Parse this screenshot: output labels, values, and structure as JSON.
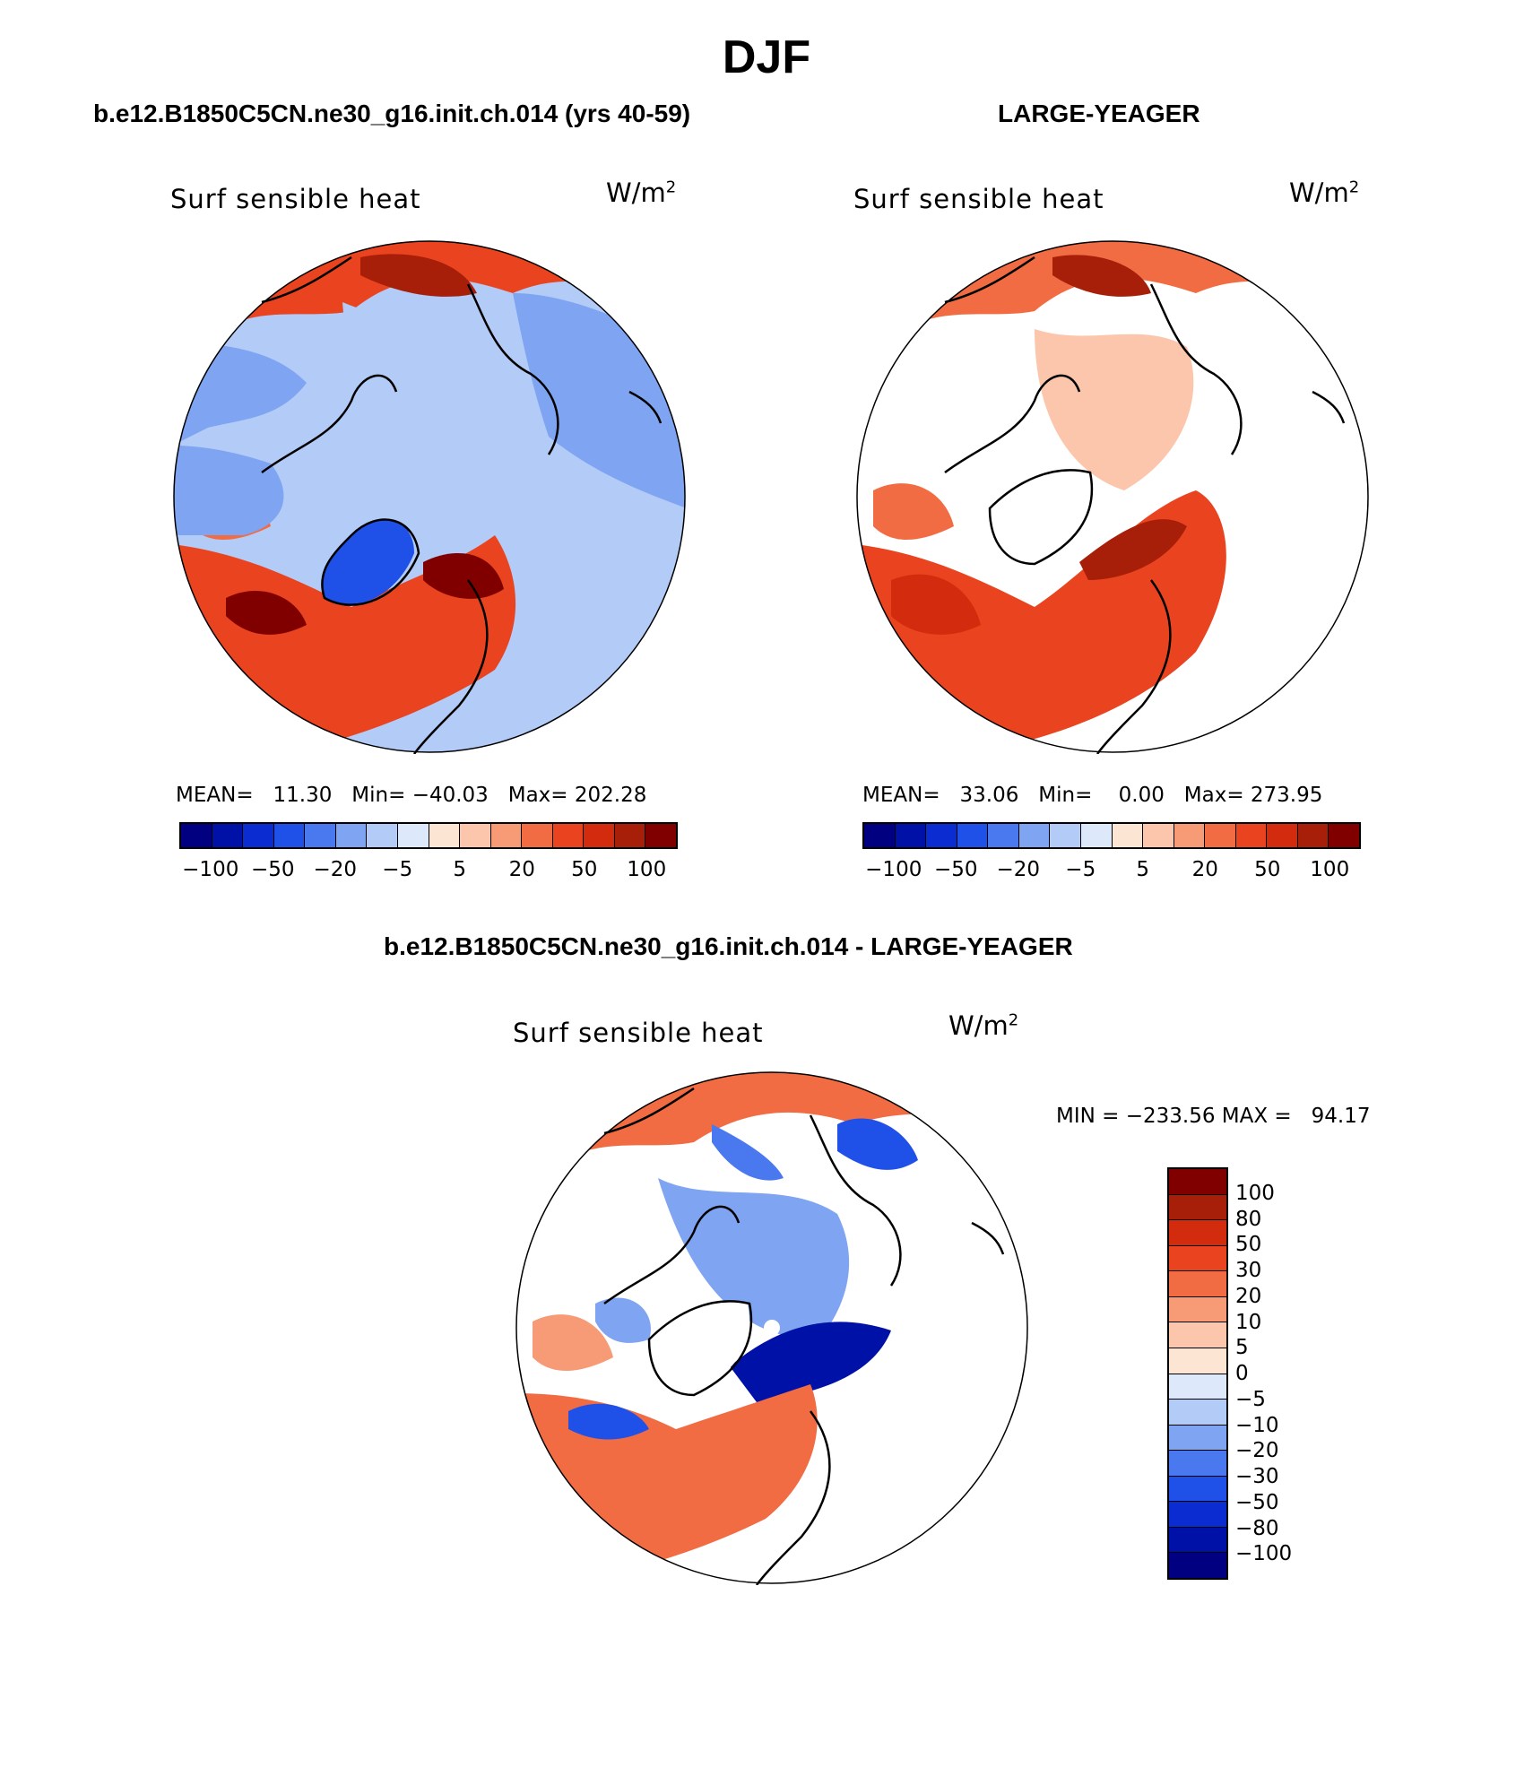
{
  "title": "DJF",
  "panels": {
    "left": {
      "case_title": "b.e12.B1850C5CN.ne30_g16.init.ch.014 (yrs 40-59)",
      "variable": "Surf sensible heat",
      "units_base": "W/m",
      "units_sup": "2",
      "stats": "MEAN=   11.30   Min= −40.03   Max= 202.28"
    },
    "right": {
      "case_title": "LARGE-YEAGER",
      "variable": "Surf sensible heat",
      "units_base": "W/m",
      "units_sup": "2",
      "stats": "MEAN=   33.06   Min=    0.00   Max= 273.95"
    },
    "diff": {
      "case_title": "b.e12.B1850C5CN.ne30_g16.init.ch.014 - LARGE-YEAGER",
      "variable": "Surf sensible heat",
      "units_base": "W/m",
      "units_sup": "2",
      "stats": "MIN = −233.56 MAX =   94.17"
    }
  },
  "colorbar_top": {
    "colors": [
      "#000080",
      "#0011a8",
      "#0a2cd0",
      "#1f50e8",
      "#4a78ee",
      "#7fa4f2",
      "#b3cbf7",
      "#dde9fb",
      "#fde5d3",
      "#fbc6ab",
      "#f79a76",
      "#f26c43",
      "#e9441f",
      "#d32b0e",
      "#a81f09",
      "#800000"
    ],
    "tick_labels": [
      "−100",
      "−50",
      "−20",
      "−5",
      "5",
      "20",
      "50",
      "100"
    ]
  },
  "colorbar_diff": {
    "colors": [
      "#800000",
      "#a81f09",
      "#d32b0e",
      "#e9441f",
      "#f26c43",
      "#f79a76",
      "#fbc6ab",
      "#fde5d3",
      "#dde9fb",
      "#b3cbf7",
      "#7fa4f2",
      "#4a78ee",
      "#1f50e8",
      "#0a2cd0",
      "#0011a8",
      "#000080"
    ],
    "tick_labels": [
      "100",
      "80",
      "50",
      "30",
      "20",
      "10",
      "5",
      "0",
      "−5",
      "−10",
      "−20",
      "−30",
      "−50",
      "−80",
      "−100"
    ]
  }
}
